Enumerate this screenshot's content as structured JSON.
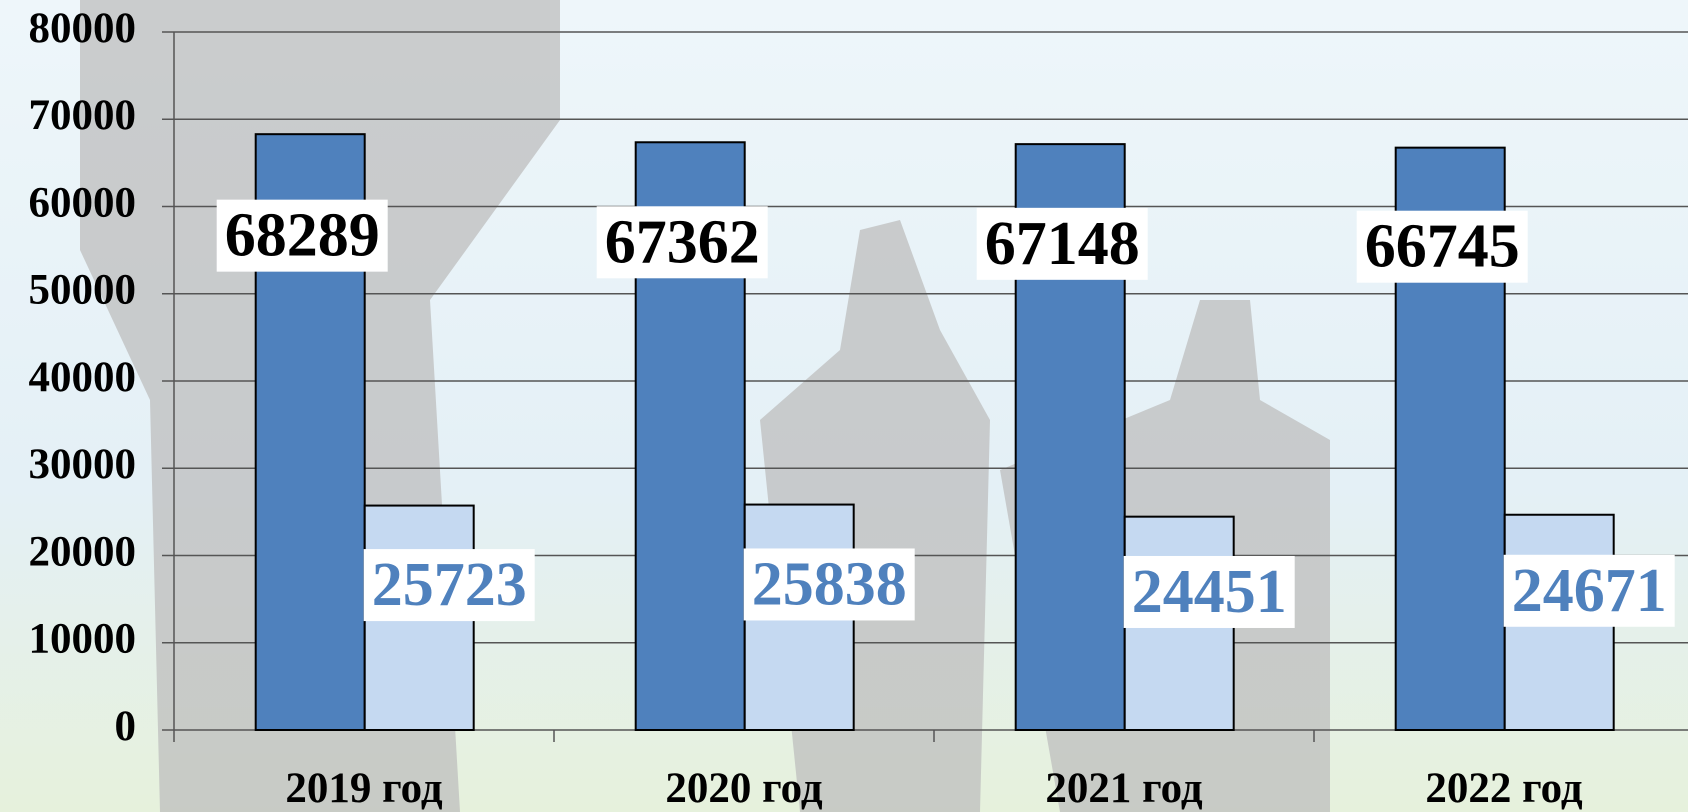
{
  "chart_data": {
    "type": "bar",
    "categories": [
      "2019 год",
      "2020 год",
      "2021 год",
      "2022 год"
    ],
    "series": [
      {
        "color": "#4f81bd",
        "values": [
          68289,
          67362,
          67148,
          66745
        ],
        "label_color": "#000000"
      },
      {
        "color": "#c5d9f1",
        "values": [
          25723,
          25838,
          24451,
          24671
        ],
        "label_color": "#4f81bd"
      }
    ],
    "ylim": [
      0,
      80000
    ],
    "yticks": [
      0,
      10000,
      20000,
      30000,
      40000,
      50000,
      60000,
      70000,
      80000
    ],
    "grid": true
  }
}
